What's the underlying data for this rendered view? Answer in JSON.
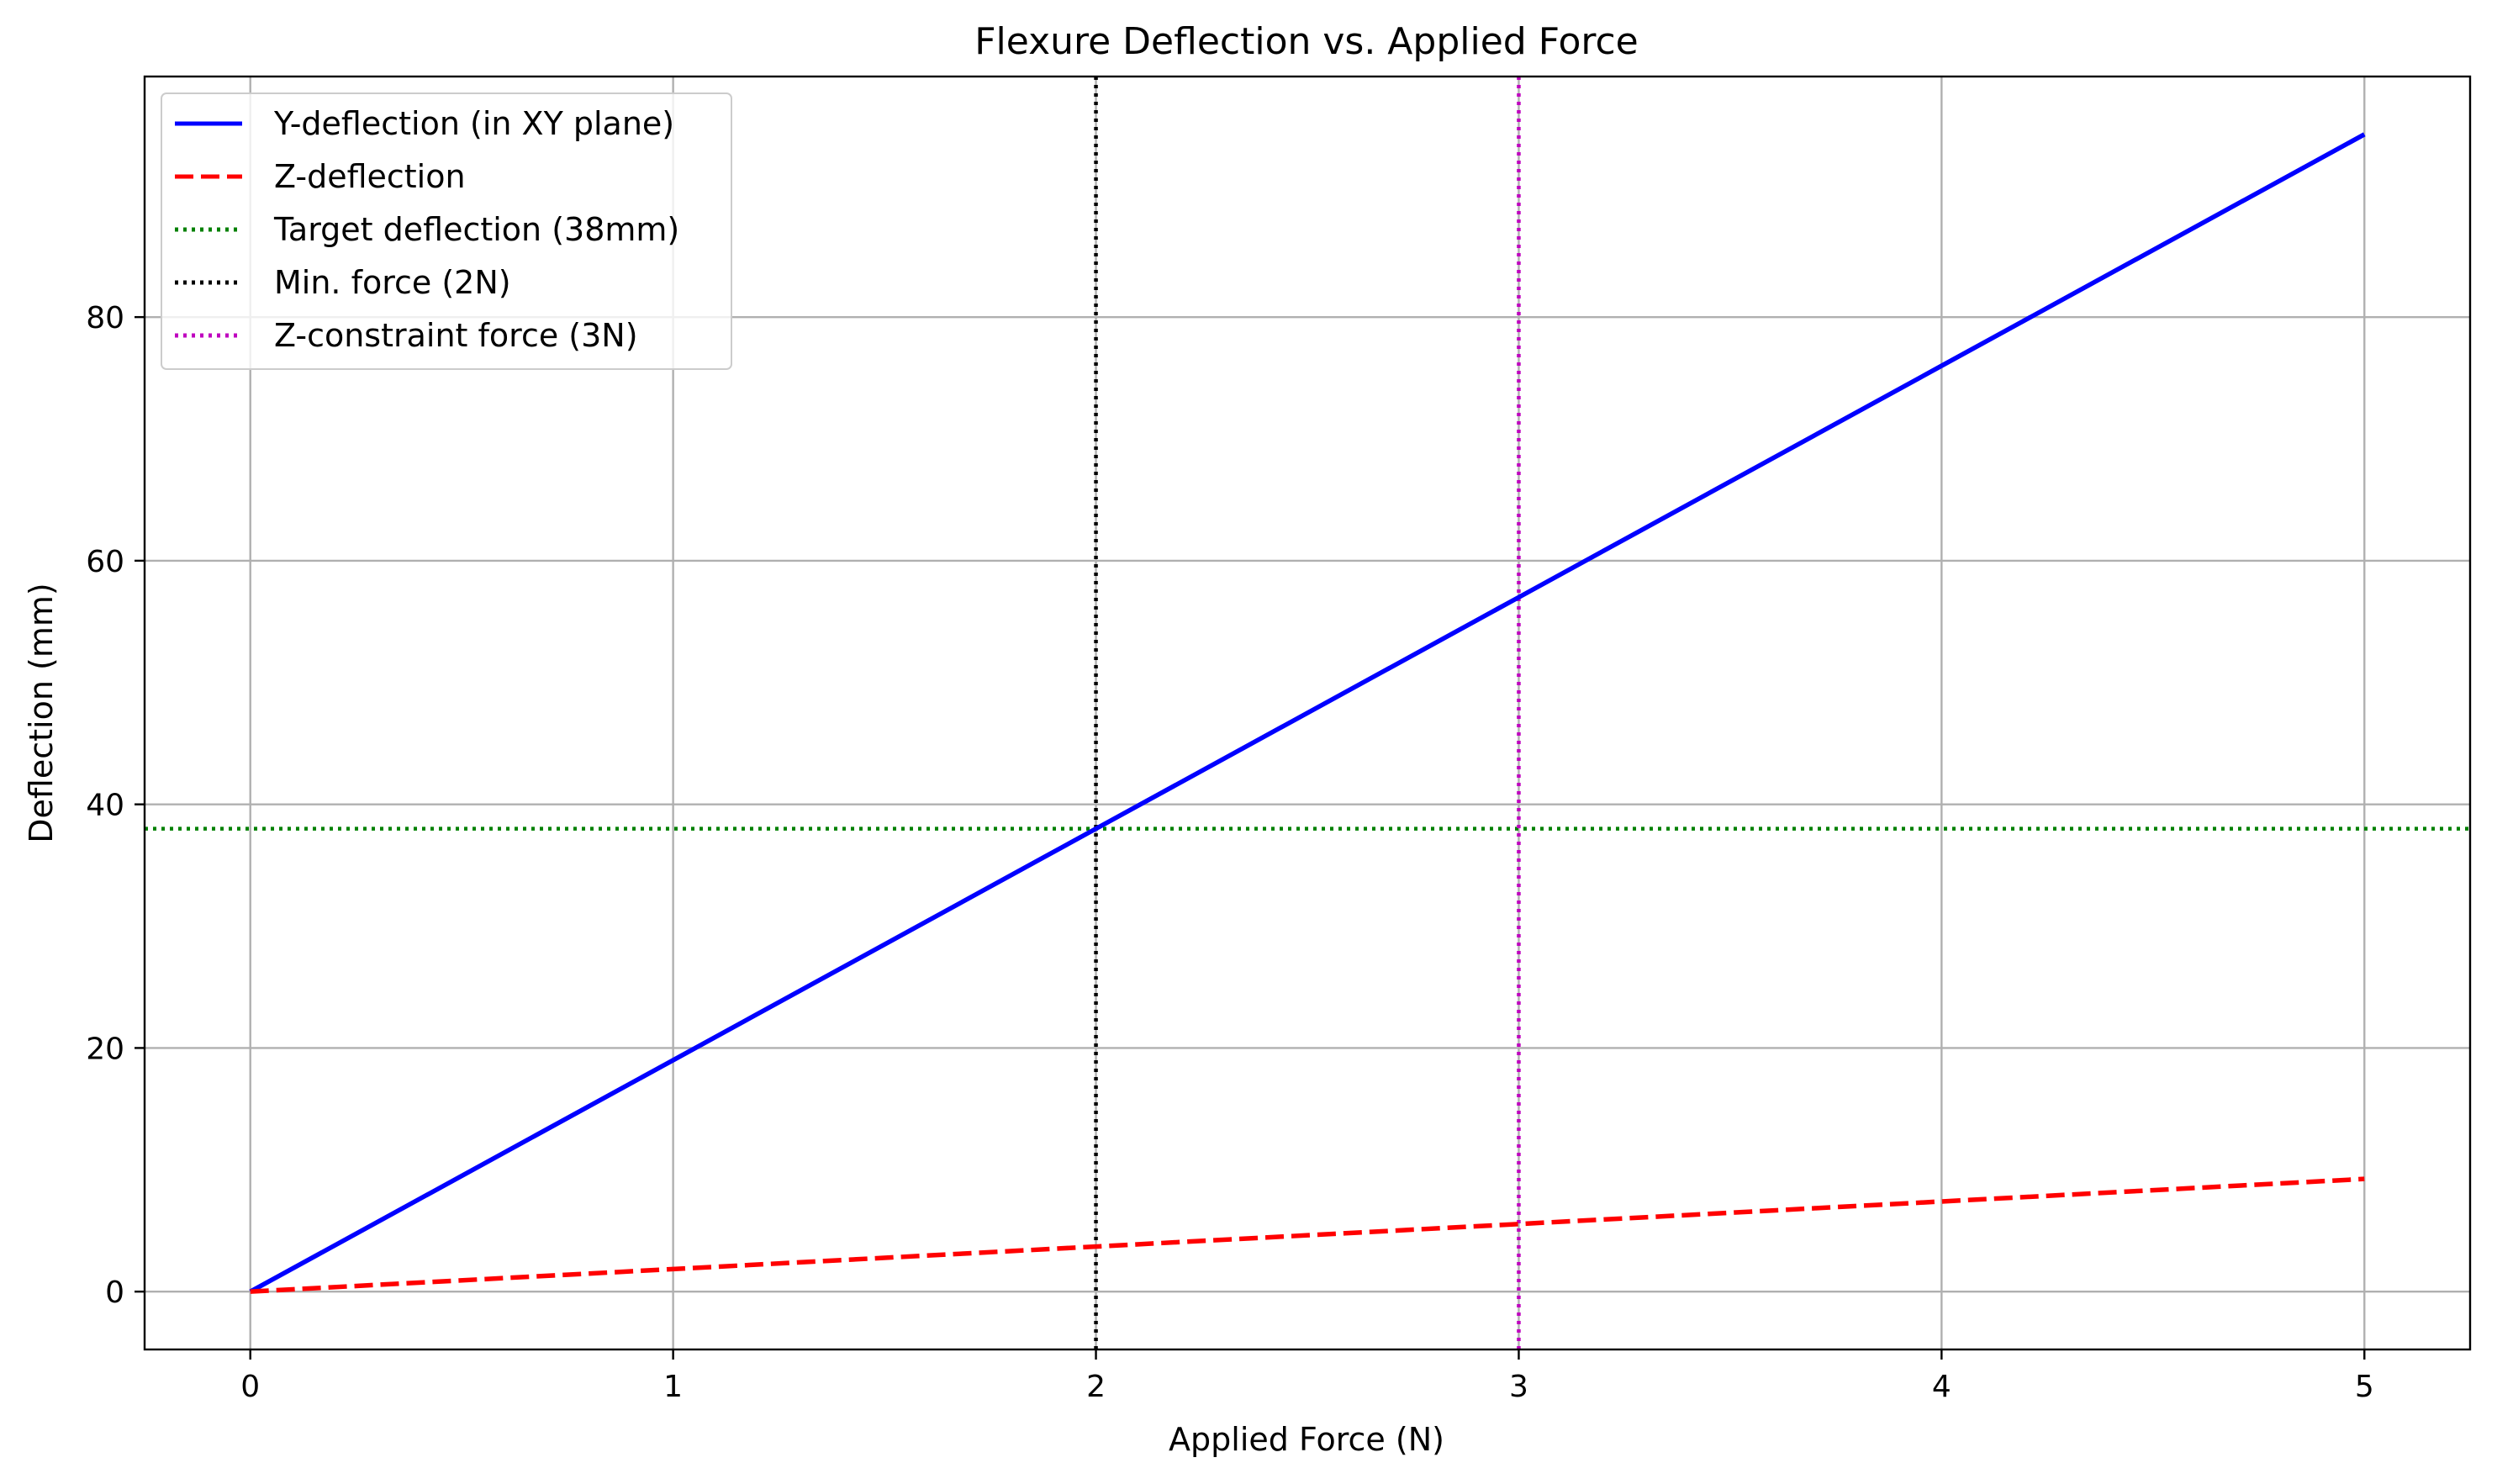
{
  "chart_data": {
    "type": "line",
    "title": "Flexure Deflection vs. Applied Force",
    "xlabel": "Applied Force (N)",
    "ylabel": "Deflection (mm)",
    "xlim": [
      -0.25,
      5.25
    ],
    "ylim": [
      -4.75,
      99.75
    ],
    "xticks": [
      0,
      1,
      2,
      3,
      4,
      5
    ],
    "xtick_labels": [
      "0",
      "1",
      "2",
      "3",
      "4",
      "5"
    ],
    "yticks": [
      0,
      20,
      40,
      60,
      80
    ],
    "ytick_labels": [
      "0",
      "20",
      "40",
      "60",
      "80"
    ],
    "grid": true,
    "legend_position": "upper-left",
    "series": [
      {
        "name": "Y-deflection (in XY plane)",
        "color": "#0000ff",
        "style": "solid",
        "x": [
          0,
          1,
          2,
          3,
          4,
          5
        ],
        "values": [
          0,
          19,
          38,
          57,
          76,
          95
        ]
      },
      {
        "name": "Z-deflection",
        "color": "#ff0000",
        "style": "dashed",
        "x": [
          0,
          1,
          2,
          3,
          4,
          5
        ],
        "values": [
          0,
          1.85,
          3.7,
          5.55,
          7.4,
          9.25
        ]
      }
    ],
    "reference_lines": [
      {
        "name": "Target deflection (38mm)",
        "orientation": "horizontal",
        "value": 38,
        "color": "#008000",
        "style": "dotted"
      },
      {
        "name": "Min. force (2N)",
        "orientation": "vertical",
        "value": 2,
        "color": "#000000",
        "style": "dotted"
      },
      {
        "name": "Z-constraint force (3N)",
        "orientation": "vertical",
        "value": 3,
        "color": "#bf00bf",
        "style": "dotted"
      }
    ]
  }
}
